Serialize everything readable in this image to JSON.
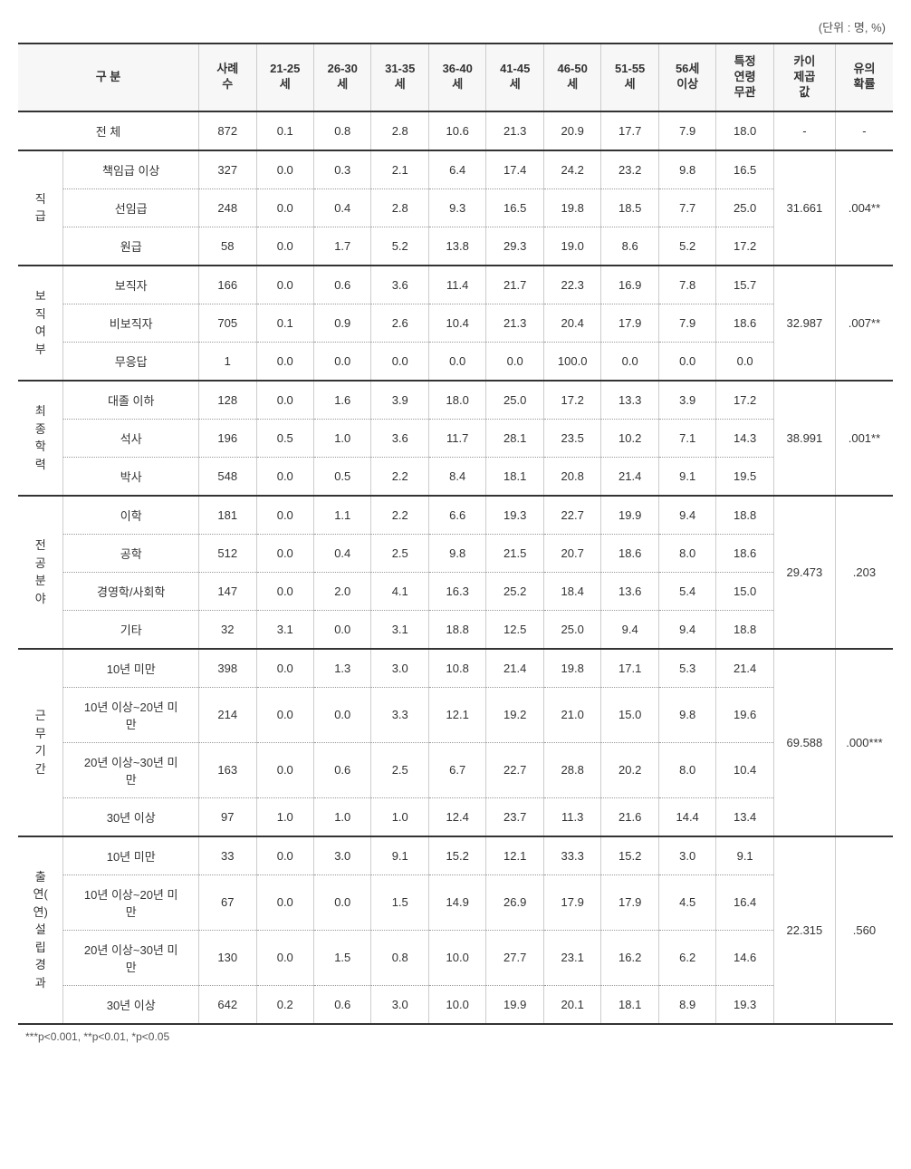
{
  "unit_label": "(단위 : 명, %)",
  "columns": {
    "category": "구 분",
    "cases": "사례\n수",
    "age_21_25": "21-25\n세",
    "age_26_30": "26-30\n세",
    "age_31_35": "31-35\n세",
    "age_36_40": "36-40\n세",
    "age_41_45": "41-45\n세",
    "age_46_50": "46-50\n세",
    "age_51_55": "51-55\n세",
    "age_56_plus": "56세\n이상",
    "age_irrelevant": "특정\n연령\n무관",
    "chi_square": "카이\n제곱\n값",
    "significance": "유의\n확률"
  },
  "total": {
    "label": "전 체",
    "cases": "872",
    "v": [
      "0.1",
      "0.8",
      "2.8",
      "10.6",
      "21.3",
      "20.9",
      "17.7",
      "7.9",
      "18.0"
    ],
    "chi": "-",
    "sig": "-"
  },
  "groups": [
    {
      "name": "직\n급",
      "chi": "31.661",
      "sig": ".004**",
      "rows": [
        {
          "label": "책임급 이상",
          "cases": "327",
          "v": [
            "0.0",
            "0.3",
            "2.1",
            "6.4",
            "17.4",
            "24.2",
            "23.2",
            "9.8",
            "16.5"
          ]
        },
        {
          "label": "선임급",
          "cases": "248",
          "v": [
            "0.0",
            "0.4",
            "2.8",
            "9.3",
            "16.5",
            "19.8",
            "18.5",
            "7.7",
            "25.0"
          ]
        },
        {
          "label": "원급",
          "cases": "58",
          "v": [
            "0.0",
            "1.7",
            "5.2",
            "13.8",
            "29.3",
            "19.0",
            "8.6",
            "5.2",
            "17.2"
          ]
        }
      ]
    },
    {
      "name": "보\n직\n여\n부",
      "chi": "32.987",
      "sig": ".007**",
      "rows": [
        {
          "label": "보직자",
          "cases": "166",
          "v": [
            "0.0",
            "0.6",
            "3.6",
            "11.4",
            "21.7",
            "22.3",
            "16.9",
            "7.8",
            "15.7"
          ]
        },
        {
          "label": "비보직자",
          "cases": "705",
          "v": [
            "0.1",
            "0.9",
            "2.6",
            "10.4",
            "21.3",
            "20.4",
            "17.9",
            "7.9",
            "18.6"
          ]
        },
        {
          "label": "무응답",
          "cases": "1",
          "v": [
            "0.0",
            "0.0",
            "0.0",
            "0.0",
            "0.0",
            "100.0",
            "0.0",
            "0.0",
            "0.0"
          ]
        }
      ]
    },
    {
      "name": "최\n종\n학\n력",
      "chi": "38.991",
      "sig": ".001**",
      "rows": [
        {
          "label": "대졸 이하",
          "cases": "128",
          "v": [
            "0.0",
            "1.6",
            "3.9",
            "18.0",
            "25.0",
            "17.2",
            "13.3",
            "3.9",
            "17.2"
          ]
        },
        {
          "label": "석사",
          "cases": "196",
          "v": [
            "0.5",
            "1.0",
            "3.6",
            "11.7",
            "28.1",
            "23.5",
            "10.2",
            "7.1",
            "14.3"
          ]
        },
        {
          "label": "박사",
          "cases": "548",
          "v": [
            "0.0",
            "0.5",
            "2.2",
            "8.4",
            "18.1",
            "20.8",
            "21.4",
            "9.1",
            "19.5"
          ]
        }
      ]
    },
    {
      "name": "전\n공\n분\n야",
      "chi": "29.473",
      "sig": ".203",
      "rows": [
        {
          "label": "이학",
          "cases": "181",
          "v": [
            "0.0",
            "1.1",
            "2.2",
            "6.6",
            "19.3",
            "22.7",
            "19.9",
            "9.4",
            "18.8"
          ]
        },
        {
          "label": "공학",
          "cases": "512",
          "v": [
            "0.0",
            "0.4",
            "2.5",
            "9.8",
            "21.5",
            "20.7",
            "18.6",
            "8.0",
            "18.6"
          ]
        },
        {
          "label": "경영학/사회학",
          "cases": "147",
          "v": [
            "0.0",
            "2.0",
            "4.1",
            "16.3",
            "25.2",
            "18.4",
            "13.6",
            "5.4",
            "15.0"
          ]
        },
        {
          "label": "기타",
          "cases": "32",
          "v": [
            "3.1",
            "0.0",
            "3.1",
            "18.8",
            "12.5",
            "25.0",
            "9.4",
            "9.4",
            "18.8"
          ]
        }
      ]
    },
    {
      "name": "근\n무\n기\n간",
      "chi": "69.588",
      "sig": ".000***",
      "rows": [
        {
          "label": "10년 미만",
          "cases": "398",
          "v": [
            "0.0",
            "1.3",
            "3.0",
            "10.8",
            "21.4",
            "19.8",
            "17.1",
            "5.3",
            "21.4"
          ]
        },
        {
          "label": "10년 이상~20년 미\n만",
          "cases": "214",
          "v": [
            "0.0",
            "0.0",
            "3.3",
            "12.1",
            "19.2",
            "21.0",
            "15.0",
            "9.8",
            "19.6"
          ]
        },
        {
          "label": "20년 이상~30년 미\n만",
          "cases": "163",
          "v": [
            "0.0",
            "0.6",
            "2.5",
            "6.7",
            "22.7",
            "28.8",
            "20.2",
            "8.0",
            "10.4"
          ]
        },
        {
          "label": "30년 이상",
          "cases": "97",
          "v": [
            "1.0",
            "1.0",
            "1.0",
            "12.4",
            "23.7",
            "11.3",
            "21.6",
            "14.4",
            "13.4"
          ]
        }
      ]
    },
    {
      "name": "출\n연(\n연)\n설\n립\n경\n과",
      "chi": "22.315",
      "sig": ".560",
      "rows": [
        {
          "label": "10년 미만",
          "cases": "33",
          "v": [
            "0.0",
            "3.0",
            "9.1",
            "15.2",
            "12.1",
            "33.3",
            "15.2",
            "3.0",
            "9.1"
          ]
        },
        {
          "label": "10년 이상~20년 미\n만",
          "cases": "67",
          "v": [
            "0.0",
            "0.0",
            "1.5",
            "14.9",
            "26.9",
            "17.9",
            "17.9",
            "4.5",
            "16.4"
          ]
        },
        {
          "label": "20년 이상~30년 미\n만",
          "cases": "130",
          "v": [
            "0.0",
            "1.5",
            "0.8",
            "10.0",
            "27.7",
            "23.1",
            "16.2",
            "6.2",
            "14.6"
          ]
        },
        {
          "label": "30년 이상",
          "cases": "642",
          "v": [
            "0.2",
            "0.6",
            "3.0",
            "10.0",
            "19.9",
            "20.1",
            "18.1",
            "8.9",
            "19.3"
          ]
        }
      ]
    }
  ],
  "footnote": "***p<0.001, **p<0.01, *p<0.05",
  "styling": {
    "background_color": "#ffffff",
    "text_color": "#333333",
    "header_bg": "#f7f7f7",
    "strong_border": "#333333",
    "light_border": "#cccccc",
    "dotted_border": "#999999",
    "font_size_body": 13,
    "font_size_unit": 13,
    "font_size_footnote": 12,
    "cell_padding_v": 11,
    "cell_padding_h": 4
  }
}
